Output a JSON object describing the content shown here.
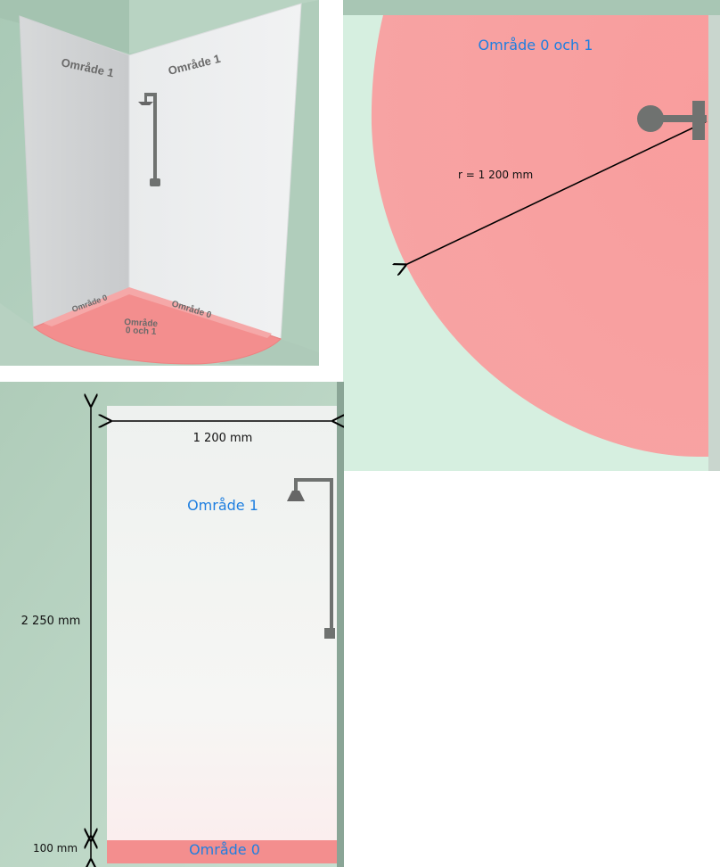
{
  "perspective_view": {
    "left_wall_label": "Område 1",
    "right_wall_label": "Område 1",
    "floor_left_label": "Område 0",
    "floor_right_label": "Område 0",
    "floor_center_label_line1": "Område",
    "floor_center_label_line2": "0 och 1"
  },
  "plan_view": {
    "zone_label": "Område 0 och 1",
    "radius_label": "r = 1 200 mm"
  },
  "elevation_view": {
    "width_label": "1 200 mm",
    "height_label": "2 250 mm",
    "floor_height_label": "100 mm",
    "wall_zone_label": "Område 1",
    "floor_zone_label": "Område 0"
  },
  "colors": {
    "background_green": "#c3dccd",
    "zone_red": "#f59a9a",
    "wall_white": "#eef0ef",
    "label_blue": "#1f7fe0",
    "shower_gray": "#6f7270"
  },
  "icons": {
    "shower": "shower-fixture-icon"
  }
}
